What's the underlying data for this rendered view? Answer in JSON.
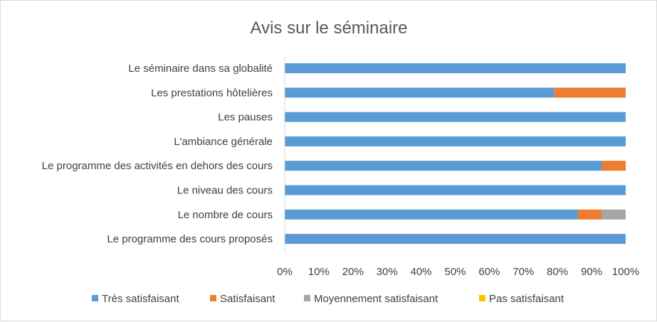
{
  "chart_data": {
    "type": "bar",
    "orientation": "horizontal",
    "stacked": "percent",
    "title": "Avis sur le séminaire",
    "categories": [
      "Le séminaire dans sa globalité",
      "Les prestations hôtelières",
      "Les pauses",
      "L'ambiance générale",
      "Le programme des activités en dehors des cours",
      "Le niveau des cours",
      "Le nombre de cours",
      "Le programme des cours proposés"
    ],
    "series": [
      {
        "name": "Très satisfaisant",
        "color": "#5b9bd5",
        "values": [
          100,
          79,
          100,
          100,
          93,
          100,
          86,
          100
        ]
      },
      {
        "name": "Satisfaisant",
        "color": "#ed7d31",
        "values": [
          0,
          21,
          0,
          0,
          7,
          0,
          7,
          0
        ]
      },
      {
        "name": "Moyennement satisfaisant",
        "color": "#a5a5a5",
        "values": [
          0,
          0,
          0,
          0,
          0,
          0,
          7,
          0
        ]
      },
      {
        "name": "Pas satisfaisant",
        "color": "#ffc000",
        "values": [
          0,
          0,
          0,
          0,
          0,
          0,
          0,
          0
        ]
      }
    ],
    "xlim": [
      0,
      100
    ],
    "x_ticks": [
      "0%",
      "10%",
      "20%",
      "30%",
      "40%",
      "50%",
      "60%",
      "70%",
      "80%",
      "90%",
      "100%"
    ],
    "grid": false,
    "legend_position": "bottom"
  }
}
